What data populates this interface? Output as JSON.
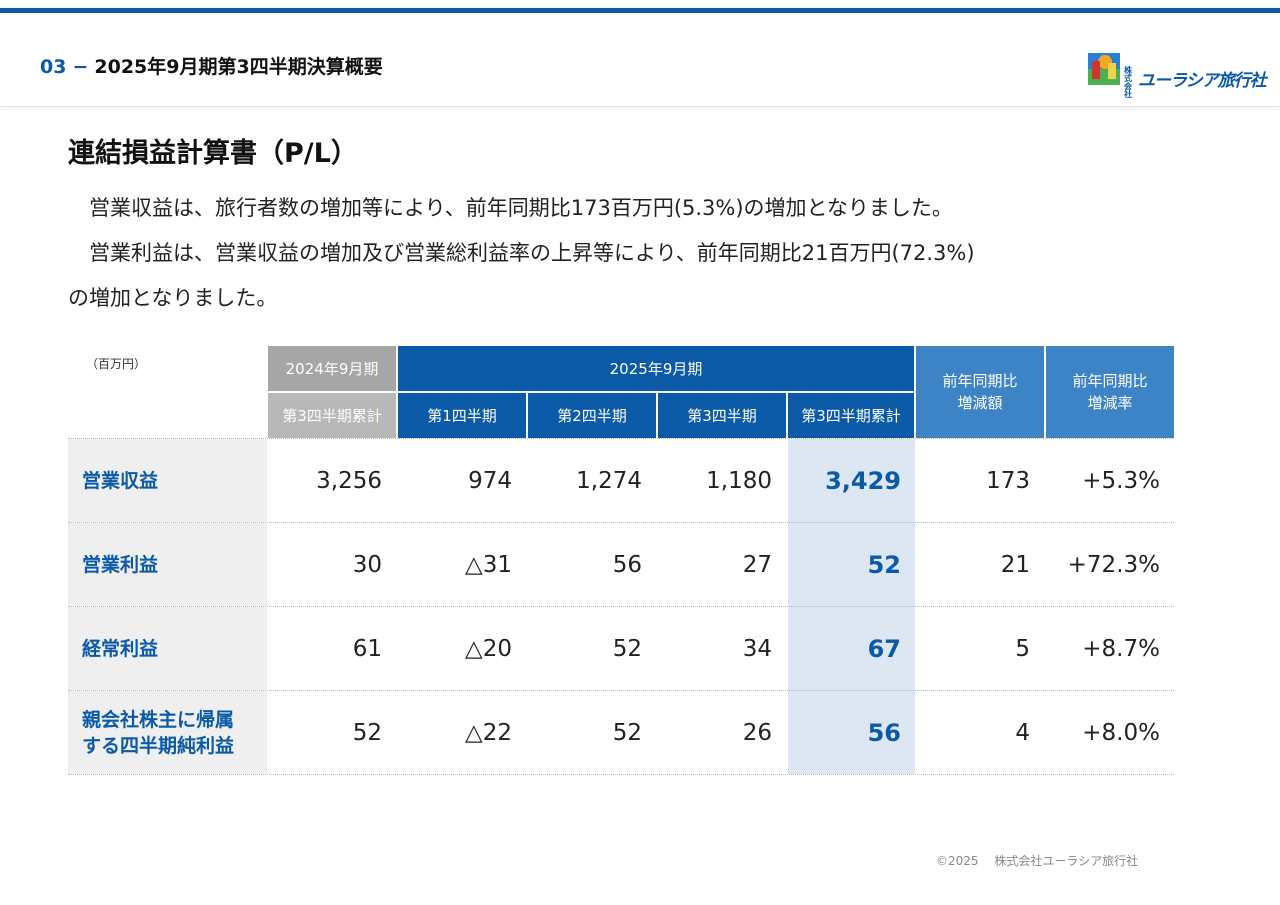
{
  "header": {
    "section_number": "03",
    "section_dash": "−",
    "section_title": "2025年9月期第3四半期決算概要",
    "logo": {
      "kaisha": "株式会社",
      "name": "ユーラシア旅行社"
    }
  },
  "title": "連結損益計算書（P/L）",
  "paragraphs": [
    "　営業収益は、旅行者数の増加等により、前年同期比173百万円(5.3%)の増加となりました。",
    "　営業利益は、営業収益の増加及び営業総利益率の上昇等により、前年同期比21百万円(72.3%)",
    "の増加となりました。"
  ],
  "table": {
    "unit": "（百万円）",
    "prev_year_header": "2024年9月期",
    "prev_year_sub": "第3四半期累計",
    "curr_year_header": "2025年9月期",
    "curr_year_subs": [
      "第1四半期",
      "第2四半期",
      "第3四半期",
      "第3四半期累計"
    ],
    "diff_header": [
      "前年同期比",
      "増減額"
    ],
    "rate_header": [
      "前年同期比",
      "増減率"
    ],
    "rows": [
      {
        "label": [
          "営業収益"
        ],
        "prev": "3,256",
        "q1": "974",
        "q2": "1,274",
        "q3": "1,180",
        "cum": "3,429",
        "diff": "173",
        "rate": "+5.3%"
      },
      {
        "label": [
          "営業利益"
        ],
        "prev": "30",
        "q1": "△31",
        "q2": "56",
        "q3": "27",
        "cum": "52",
        "diff": "21",
        "rate": "+72.3%"
      },
      {
        "label": [
          "経常利益"
        ],
        "prev": "61",
        "q1": "△20",
        "q2": "52",
        "q3": "34",
        "cum": "67",
        "diff": "5",
        "rate": "+8.7%"
      },
      {
        "label": [
          "親会社株主に帰属",
          "する四半期純利益"
        ],
        "prev": "52",
        "q1": "△22",
        "q2": "52",
        "q3": "26",
        "cum": "56",
        "diff": "4",
        "rate": "+8.0%"
      }
    ]
  },
  "footer": "©2025　 株式会社ユーラシア旅行社",
  "colors": {
    "accent": "#0a5aa8",
    "accent_light": "#3d84c6",
    "highlight": "#dde7f3",
    "gray_header": "#a6a6a6"
  }
}
